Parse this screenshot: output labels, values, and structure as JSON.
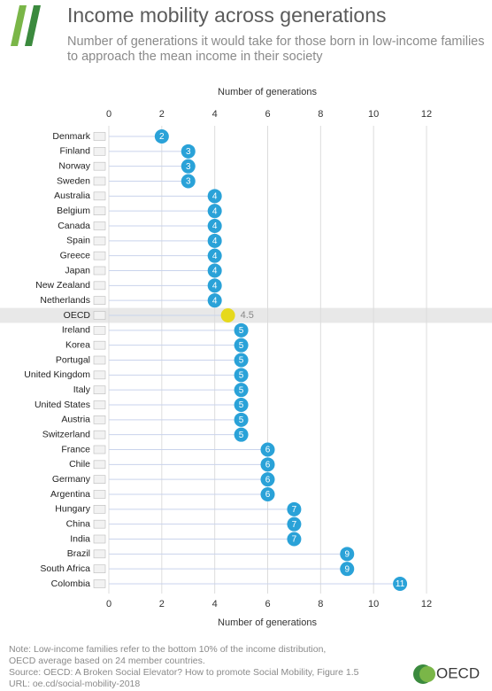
{
  "chart_data": {
    "type": "lollipop",
    "title": "Income mobility across generations",
    "subtitle": [
      "Number of generations it would take for those born in low-income families",
      "to approach the mean income in their society"
    ],
    "xlabel": "Number of generations",
    "categories": [
      "Denmark",
      "Finland",
      "Norway",
      "Sweden",
      "Australia",
      "Belgium",
      "Canada",
      "Spain",
      "Greece",
      "Japan",
      "New Zealand",
      "Netherlands",
      "OECD",
      "Ireland",
      "Korea",
      "Portugal",
      "United Kingdom",
      "Italy",
      "United States",
      "Austria",
      "Switzerland",
      "France",
      "Chile",
      "Germany",
      "Argentina",
      "Hungary",
      "China",
      "India",
      "Brazil",
      "South Africa",
      "Colombia"
    ],
    "values": [
      2,
      3,
      3,
      3,
      4,
      4,
      4,
      4,
      4,
      4,
      4,
      4,
      4.5,
      5,
      5,
      5,
      5,
      5,
      5,
      5,
      5,
      6,
      6,
      6,
      6,
      7,
      7,
      7,
      9,
      9,
      11
    ],
    "color": "#2aa2d8",
    "highlight": "OECD",
    "highlight_color": "#e6d91d",
    "xlim": [
      0,
      12
    ],
    "xticks": [
      0,
      2,
      4,
      6,
      8,
      10,
      12
    ],
    "grid": true,
    "notes": [
      "Note: Low-income families refer to the bottom 10% of the income distribution,",
      "OECD average based on 24 member countries.",
      "Source: OECD: A Broken Social Elevator? How to promote Social Mobility, Figure 1.5",
      "URL: oe.cd/social-mobility-2018"
    ],
    "logo": "OECD"
  }
}
